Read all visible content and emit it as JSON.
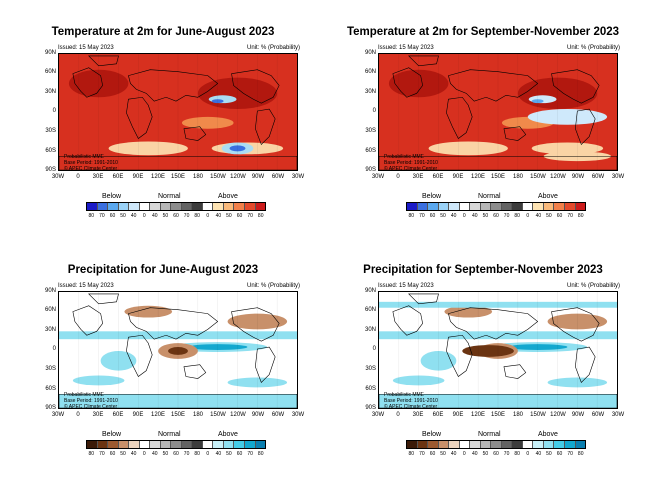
{
  "panels": [
    {
      "title": "Temperature at 2m for June-August 2023",
      "issued": "Issued: 15 May 2023",
      "unit": "Unit: % (Probability)",
      "notes": [
        "Probabilistic MME",
        "Base Period: 1991-2010",
        "© APEC Climate Center"
      ],
      "lat_labels": [
        "90N",
        "60N",
        "30N",
        "0",
        "30S",
        "60S",
        "90S"
      ],
      "lon_labels": [
        "30W",
        "0",
        "30E",
        "60E",
        "90E",
        "120E",
        "150E",
        "180",
        "150W",
        "120W",
        "90W",
        "60W",
        "30W"
      ],
      "legend": {
        "categories": [
          "Below",
          "Normal",
          "Above"
        ],
        "tick_labels": [
          "80",
          "70",
          "60",
          "50",
          "40",
          "0",
          "40",
          "50",
          "60",
          "70",
          "80",
          "0",
          "40",
          "50",
          "60",
          "70",
          "80"
        ],
        "colors": [
          "#1b1bc8",
          "#3a6fe0",
          "#5aa8ef",
          "#9ad2f7",
          "#cfe9fb",
          "#ffffff",
          "#d8d8d8",
          "#b6b6b6",
          "#8c8c8c",
          "#636363",
          "#3c3c3c",
          "#ffffff",
          "#fde3b3",
          "#f9b97a",
          "#f2804a",
          "#e44a2c",
          "#cc1b1b"
        ]
      },
      "map_style": "temperature",
      "map_colors": {
        "base": "#d7301f",
        "warm_deep": "#b2180f",
        "light": "#fad4a5",
        "mid": "#f08a4b",
        "cool": "#aadcf3",
        "blue": "#3a6fe0"
      }
    },
    {
      "title": "Temperature at 2m for September-November 2023",
      "issued": "Issued: 15 May 2023",
      "unit": "Unit: % (Probability)",
      "notes": [
        "Probabilistic MME",
        "Base Period: 1991-2010",
        "© APEC Climate Center"
      ],
      "lat_labels": [
        "90N",
        "60N",
        "30N",
        "0",
        "30S",
        "60S",
        "90S"
      ],
      "lon_labels": [
        "30W",
        "0",
        "30E",
        "60E",
        "90E",
        "120E",
        "150E",
        "180",
        "150W",
        "120W",
        "90W",
        "60W",
        "30W"
      ],
      "legend": {
        "categories": [
          "Below",
          "Normal",
          "Above"
        ],
        "tick_labels": [
          "80",
          "70",
          "60",
          "50",
          "40",
          "0",
          "40",
          "50",
          "60",
          "70",
          "80",
          "0",
          "40",
          "50",
          "60",
          "70",
          "80"
        ],
        "colors": [
          "#1b1bc8",
          "#3a6fe0",
          "#5aa8ef",
          "#9ad2f7",
          "#cfe9fb",
          "#ffffff",
          "#d8d8d8",
          "#b6b6b6",
          "#8c8c8c",
          "#636363",
          "#3c3c3c",
          "#ffffff",
          "#fde3b3",
          "#f9b97a",
          "#f2804a",
          "#e44a2c",
          "#cc1b1b"
        ]
      },
      "map_style": "temperature2",
      "map_colors": {
        "base": "#d7301f",
        "warm_deep": "#b2180f",
        "light": "#fad4a5",
        "mid": "#f08a4b",
        "cool": "#cfe9fb",
        "blue": "#5aa8ef"
      }
    },
    {
      "title": "Precipitation for June-August 2023",
      "issued": "Issued: 15 May 2023",
      "unit": "Unit: % (Probability)",
      "notes": [
        "Probabilistic MME",
        "Base Period: 1991-2010",
        "© APEC Climate Center"
      ],
      "lat_labels": [
        "90N",
        "60N",
        "30N",
        "0",
        "30S",
        "60S",
        "90S"
      ],
      "lon_labels": [
        "30W",
        "0",
        "30E",
        "60E",
        "90E",
        "120E",
        "150E",
        "180",
        "150W",
        "120W",
        "90W",
        "60W",
        "30W"
      ],
      "legend": {
        "categories": [
          "Below",
          "Normal",
          "Above"
        ],
        "tick_labels": [
          "80",
          "70",
          "60",
          "50",
          "40",
          "0",
          "40",
          "50",
          "60",
          "70",
          "80",
          "0",
          "40",
          "50",
          "60",
          "70",
          "80"
        ],
        "colors": [
          "#3b1a08",
          "#6b3412",
          "#9c5a30",
          "#c8906a",
          "#ecd3bd",
          "#ffffff",
          "#d8d8d8",
          "#b6b6b6",
          "#8c8c8c",
          "#636363",
          "#3c3c3c",
          "#ffffff",
          "#c7f0f8",
          "#8fe0f0",
          "#45cce6",
          "#13a8cf",
          "#0a7fb0"
        ]
      },
      "map_style": "precip",
      "map_colors": {
        "base": "#ffffff",
        "wet": "#8fe0f0",
        "wet_deep": "#13a8cf",
        "dry": "#c8906a",
        "dry_deep": "#6b3412"
      }
    },
    {
      "title": "Precipitation for September-November 2023",
      "issued": "Issued: 15 May 2023",
      "unit": "Unit: % (Probability)",
      "notes": [
        "Probabilistic MME",
        "Base Period: 1991-2010",
        "© APEC Climate Center"
      ],
      "lat_labels": [
        "90N",
        "60N",
        "30N",
        "0",
        "30S",
        "60S",
        "90S"
      ],
      "lon_labels": [
        "30W",
        "0",
        "30E",
        "60E",
        "90E",
        "120E",
        "150E",
        "180",
        "150W",
        "120W",
        "90W",
        "60W",
        "30W"
      ],
      "legend": {
        "categories": [
          "Below",
          "Normal",
          "Above"
        ],
        "tick_labels": [
          "80",
          "70",
          "60",
          "50",
          "40",
          "0",
          "40",
          "50",
          "60",
          "70",
          "80",
          "0",
          "40",
          "50",
          "60",
          "70",
          "80"
        ],
        "colors": [
          "#3b1a08",
          "#6b3412",
          "#9c5a30",
          "#c8906a",
          "#ecd3bd",
          "#ffffff",
          "#d8d8d8",
          "#b6b6b6",
          "#8c8c8c",
          "#636363",
          "#3c3c3c",
          "#ffffff",
          "#c7f0f8",
          "#8fe0f0",
          "#45cce6",
          "#13a8cf",
          "#0a7fb0"
        ]
      },
      "map_style": "precip2",
      "map_colors": {
        "base": "#ffffff",
        "wet": "#8fe0f0",
        "wet_deep": "#13a8cf",
        "dry": "#c8906a",
        "dry_deep": "#6b3412"
      }
    }
  ]
}
